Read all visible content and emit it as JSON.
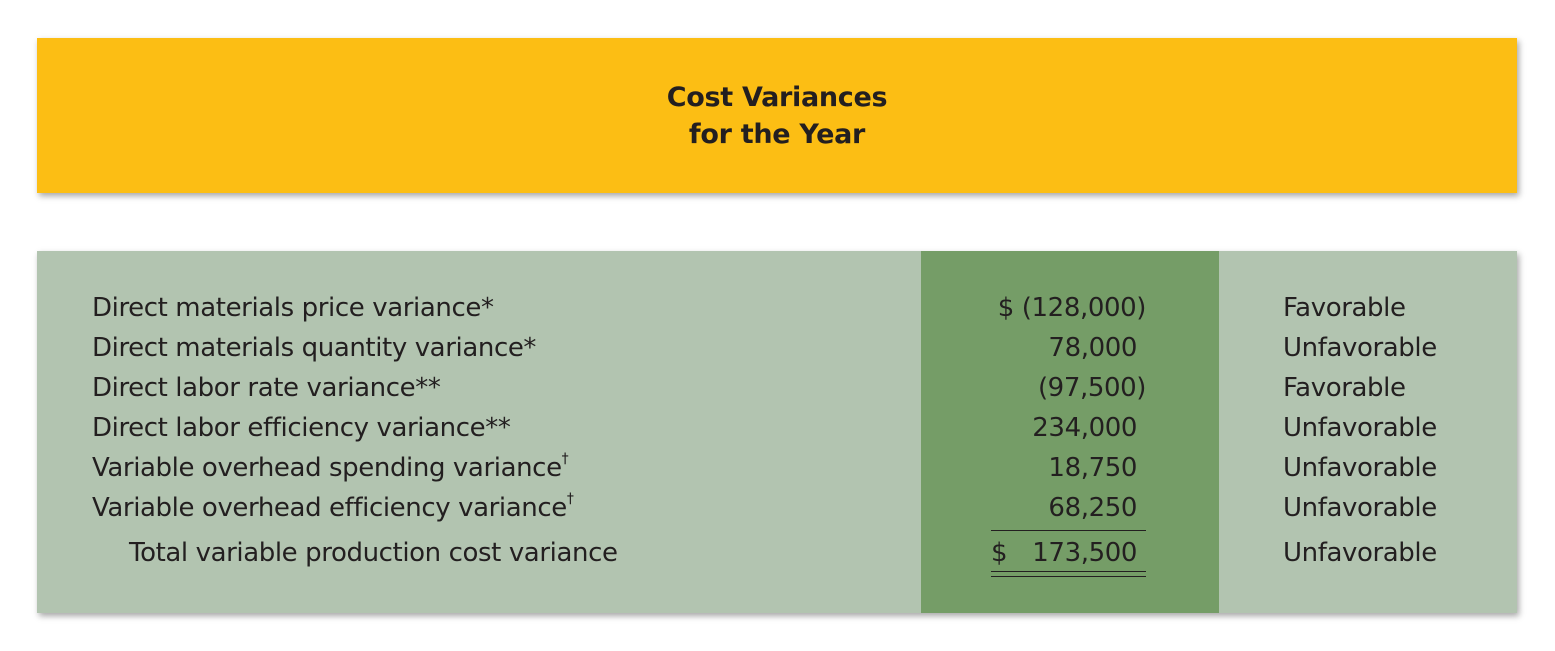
{
  "header": {
    "title_line1": "Cost Variances",
    "title_line2": "for the Year",
    "background_color": "#fcbe14"
  },
  "table": {
    "background_color": "#b2c4b0",
    "amount_column_color": "#759d67",
    "rows": [
      {
        "label": "Direct materials price variance*",
        "amount": "$ (128,000)",
        "status": "Favorable"
      },
      {
        "label": "Direct materials quantity variance*",
        "amount": "78,000",
        "status": "Unfavorable"
      },
      {
        "label": "Direct labor rate variance**",
        "amount": "(97,500)",
        "status": "Favorable"
      },
      {
        "label": "Direct labor efficiency variance**",
        "amount": "234,000",
        "status": "Unfavorable"
      },
      {
        "label": "Variable overhead spending variance",
        "label_mark": "†",
        "amount": "18,750",
        "status": "Unfavorable"
      },
      {
        "label": "Variable overhead efficiency variance",
        "label_mark": "†",
        "amount": "68,250",
        "status": "Unfavorable"
      }
    ],
    "total": {
      "label": "Total variable production cost variance",
      "currency": "$",
      "amount": "173,500",
      "status": "Unfavorable"
    }
  }
}
